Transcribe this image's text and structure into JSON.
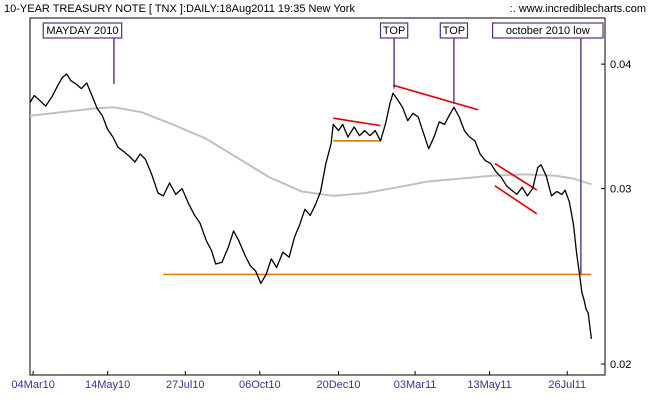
{
  "chart_data": {
    "type": "line",
    "title": "10-YEAR TREASURY NOTE [ TNX ]:DAILY:18Aug2011 19:35 New York",
    "source_url": ":. www.incrediblecharts.com",
    "y_scale": "log",
    "ylim": [
      0.0195,
      0.0445
    ],
    "y_ticks": [
      {
        "value": 0.04,
        "label": "0.04"
      },
      {
        "value": 0.03,
        "label": "0.03"
      },
      {
        "value": 0.02,
        "label": "0.02"
      }
    ],
    "x_range": [
      "2010-03-01",
      "2011-08-31"
    ],
    "x_ticks": [
      {
        "date": "2010-03-04",
        "label": "04Mar10"
      },
      {
        "date": "2010-05-14",
        "label": "14May10"
      },
      {
        "date": "2010-07-27",
        "label": "27Jul10"
      },
      {
        "date": "2010-10-06",
        "label": "06Oct10"
      },
      {
        "date": "2010-12-20",
        "label": "20Dec10"
      },
      {
        "date": "2011-03-03",
        "label": "03Mar11"
      },
      {
        "date": "2011-05-13",
        "label": "13May11"
      },
      {
        "date": "2011-07-26",
        "label": "26Jul11"
      }
    ],
    "grid": false,
    "series": [
      {
        "role": "price",
        "color": "#000000",
        "points": [
          [
            "2010-03-01",
            0.0366
          ],
          [
            "2010-03-05",
            0.0372
          ],
          [
            "2010-03-10",
            0.0368
          ],
          [
            "2010-03-16",
            0.0363
          ],
          [
            "2010-03-22",
            0.0371
          ],
          [
            "2010-03-27",
            0.038
          ],
          [
            "2010-04-01",
            0.0388
          ],
          [
            "2010-04-05",
            0.0391
          ],
          [
            "2010-04-09",
            0.0385
          ],
          [
            "2010-04-14",
            0.0382
          ],
          [
            "2010-04-19",
            0.0378
          ],
          [
            "2010-04-24",
            0.0383
          ],
          [
            "2010-04-29",
            0.0372
          ],
          [
            "2010-05-04",
            0.0361
          ],
          [
            "2010-05-09",
            0.0355
          ],
          [
            "2010-05-14",
            0.0344
          ],
          [
            "2010-05-19",
            0.0338
          ],
          [
            "2010-05-24",
            0.033
          ],
          [
            "2010-05-29",
            0.0327
          ],
          [
            "2010-06-04",
            0.0323
          ],
          [
            "2010-06-09",
            0.0319
          ],
          [
            "2010-06-14",
            0.0325
          ],
          [
            "2010-06-19",
            0.0321
          ],
          [
            "2010-06-25",
            0.031
          ],
          [
            "2010-07-01",
            0.0297
          ],
          [
            "2010-07-06",
            0.0295
          ],
          [
            "2010-07-12",
            0.0304
          ],
          [
            "2010-07-18",
            0.0296
          ],
          [
            "2010-07-24",
            0.03
          ],
          [
            "2010-07-30",
            0.029
          ],
          [
            "2010-08-05",
            0.0282
          ],
          [
            "2010-08-10",
            0.0277
          ],
          [
            "2010-08-16",
            0.0266
          ],
          [
            "2010-08-21",
            0.026
          ],
          [
            "2010-08-25",
            0.0252
          ],
          [
            "2010-08-31",
            0.0253
          ],
          [
            "2010-09-06",
            0.0262
          ],
          [
            "2010-09-11",
            0.0272
          ],
          [
            "2010-09-16",
            0.0266
          ],
          [
            "2010-09-22",
            0.0257
          ],
          [
            "2010-09-27",
            0.0251
          ],
          [
            "2010-10-02",
            0.0248
          ],
          [
            "2010-10-07",
            0.0241
          ],
          [
            "2010-10-12",
            0.0246
          ],
          [
            "2010-10-17",
            0.0255
          ],
          [
            "2010-10-22",
            0.025
          ],
          [
            "2010-10-28",
            0.0259
          ],
          [
            "2010-11-03",
            0.0256
          ],
          [
            "2010-11-08",
            0.0268
          ],
          [
            "2010-11-13",
            0.0276
          ],
          [
            "2010-11-18",
            0.0286
          ],
          [
            "2010-11-23",
            0.0282
          ],
          [
            "2010-11-28",
            0.0289
          ],
          [
            "2010-12-03",
            0.0298
          ],
          [
            "2010-12-08",
            0.0318
          ],
          [
            "2010-12-13",
            0.0333
          ],
          [
            "2010-12-15",
            0.0348
          ],
          [
            "2010-12-20",
            0.0343
          ],
          [
            "2010-12-24",
            0.0348
          ],
          [
            "2010-12-29",
            0.0338
          ],
          [
            "2011-01-04",
            0.0346
          ],
          [
            "2011-01-09",
            0.0339
          ],
          [
            "2011-01-14",
            0.0343
          ],
          [
            "2011-01-19",
            0.0339
          ],
          [
            "2011-01-24",
            0.0343
          ],
          [
            "2011-01-29",
            0.0335
          ],
          [
            "2011-02-03",
            0.0349
          ],
          [
            "2011-02-07",
            0.0365
          ],
          [
            "2011-02-10",
            0.0374
          ],
          [
            "2011-02-14",
            0.0369
          ],
          [
            "2011-02-19",
            0.0362
          ],
          [
            "2011-02-24",
            0.0351
          ],
          [
            "2011-03-01",
            0.0357
          ],
          [
            "2011-03-06",
            0.0354
          ],
          [
            "2011-03-11",
            0.0341
          ],
          [
            "2011-03-16",
            0.0329
          ],
          [
            "2011-03-21",
            0.0338
          ],
          [
            "2011-03-26",
            0.035
          ],
          [
            "2011-03-31",
            0.0348
          ],
          [
            "2011-04-05",
            0.0356
          ],
          [
            "2011-04-09",
            0.0362
          ],
          [
            "2011-04-14",
            0.0354
          ],
          [
            "2011-04-19",
            0.0343
          ],
          [
            "2011-04-24",
            0.0338
          ],
          [
            "2011-04-29",
            0.0335
          ],
          [
            "2011-05-04",
            0.0325
          ],
          [
            "2011-05-09",
            0.032
          ],
          [
            "2011-05-14",
            0.0318
          ],
          [
            "2011-05-19",
            0.0312
          ],
          [
            "2011-05-24",
            0.0308
          ],
          [
            "2011-05-29",
            0.0302
          ],
          [
            "2011-06-03",
            0.0299
          ],
          [
            "2011-06-08",
            0.0296
          ],
          [
            "2011-06-13",
            0.0301
          ],
          [
            "2011-06-18",
            0.0295
          ],
          [
            "2011-06-23",
            0.03
          ],
          [
            "2011-06-28",
            0.0315
          ],
          [
            "2011-07-01",
            0.0317
          ],
          [
            "2011-07-06",
            0.0309
          ],
          [
            "2011-07-11",
            0.0295
          ],
          [
            "2011-07-16",
            0.0298
          ],
          [
            "2011-07-21",
            0.0296
          ],
          [
            "2011-07-24",
            0.0299
          ],
          [
            "2011-07-28",
            0.0291
          ],
          [
            "2011-08-01",
            0.0276
          ],
          [
            "2011-08-04",
            0.0258
          ],
          [
            "2011-08-07",
            0.0245
          ],
          [
            "2011-08-09",
            0.0236
          ],
          [
            "2011-08-11",
            0.0232
          ],
          [
            "2011-08-13",
            0.0227
          ],
          [
            "2011-08-15",
            0.0225
          ],
          [
            "2011-08-18",
            0.0212
          ]
        ]
      },
      {
        "role": "moving-average",
        "color": "#c0c0c0",
        "points": [
          [
            "2010-03-01",
            0.0355
          ],
          [
            "2010-04-01",
            0.0358
          ],
          [
            "2010-05-01",
            0.0361
          ],
          [
            "2010-05-20",
            0.0362
          ],
          [
            "2010-06-15",
            0.0358
          ],
          [
            "2010-07-15",
            0.0348
          ],
          [
            "2010-08-15",
            0.0337
          ],
          [
            "2010-09-15",
            0.0322
          ],
          [
            "2010-10-15",
            0.0308
          ],
          [
            "2010-11-15",
            0.0298
          ],
          [
            "2010-12-15",
            0.0295
          ],
          [
            "2011-01-15",
            0.0297
          ],
          [
            "2011-02-15",
            0.0301
          ],
          [
            "2011-03-15",
            0.0305
          ],
          [
            "2011-04-15",
            0.0307
          ],
          [
            "2011-05-15",
            0.0309
          ],
          [
            "2011-06-15",
            0.031
          ],
          [
            "2011-07-15",
            0.0309
          ],
          [
            "2011-08-01",
            0.0307
          ],
          [
            "2011-08-18",
            0.0303
          ]
        ]
      }
    ],
    "trend_lines": [
      {
        "role": "flag-upper",
        "color": "#e00000",
        "from": [
          "2010-12-15",
          0.0353
        ],
        "to": [
          "2011-01-29",
          0.0347
        ]
      },
      {
        "role": "flag-lower",
        "color": "#e07a00",
        "from": [
          "2010-12-15",
          0.0335
        ],
        "to": [
          "2011-01-29",
          0.0335
        ]
      },
      {
        "role": "double-top-line",
        "color": "#e00000",
        "from": [
          "2011-02-10",
          0.0381
        ],
        "to": [
          "2011-05-02",
          0.036
        ]
      },
      {
        "role": "channel-upper",
        "color": "#e00000",
        "from": [
          "2011-05-18",
          0.0318
        ],
        "to": [
          "2011-06-27",
          0.0299
        ]
      },
      {
        "role": "channel-lower",
        "color": "#e00000",
        "from": [
          "2011-05-18",
          0.0302
        ],
        "to": [
          "2011-06-27",
          0.0283
        ]
      },
      {
        "role": "support",
        "color": "#e07a00",
        "from": [
          "2010-07-06",
          0.0246
        ],
        "to": [
          "2011-08-18",
          0.0246
        ]
      }
    ],
    "annotations": [
      {
        "text": "MAYDAY 2010",
        "date": "2010-05-20",
        "value": 0.0382,
        "label_date": "2010-04-20"
      },
      {
        "text": "TOP",
        "date": "2011-02-11",
        "value": 0.0378,
        "label_date": "2011-02-11"
      },
      {
        "text": "TOP",
        "date": "2011-04-09",
        "value": 0.0365,
        "label_date": "2011-04-09"
      },
      {
        "text": "october 2010 low",
        "date": "2011-08-08",
        "value": 0.0246,
        "label_date": "2011-07-30"
      }
    ]
  }
}
